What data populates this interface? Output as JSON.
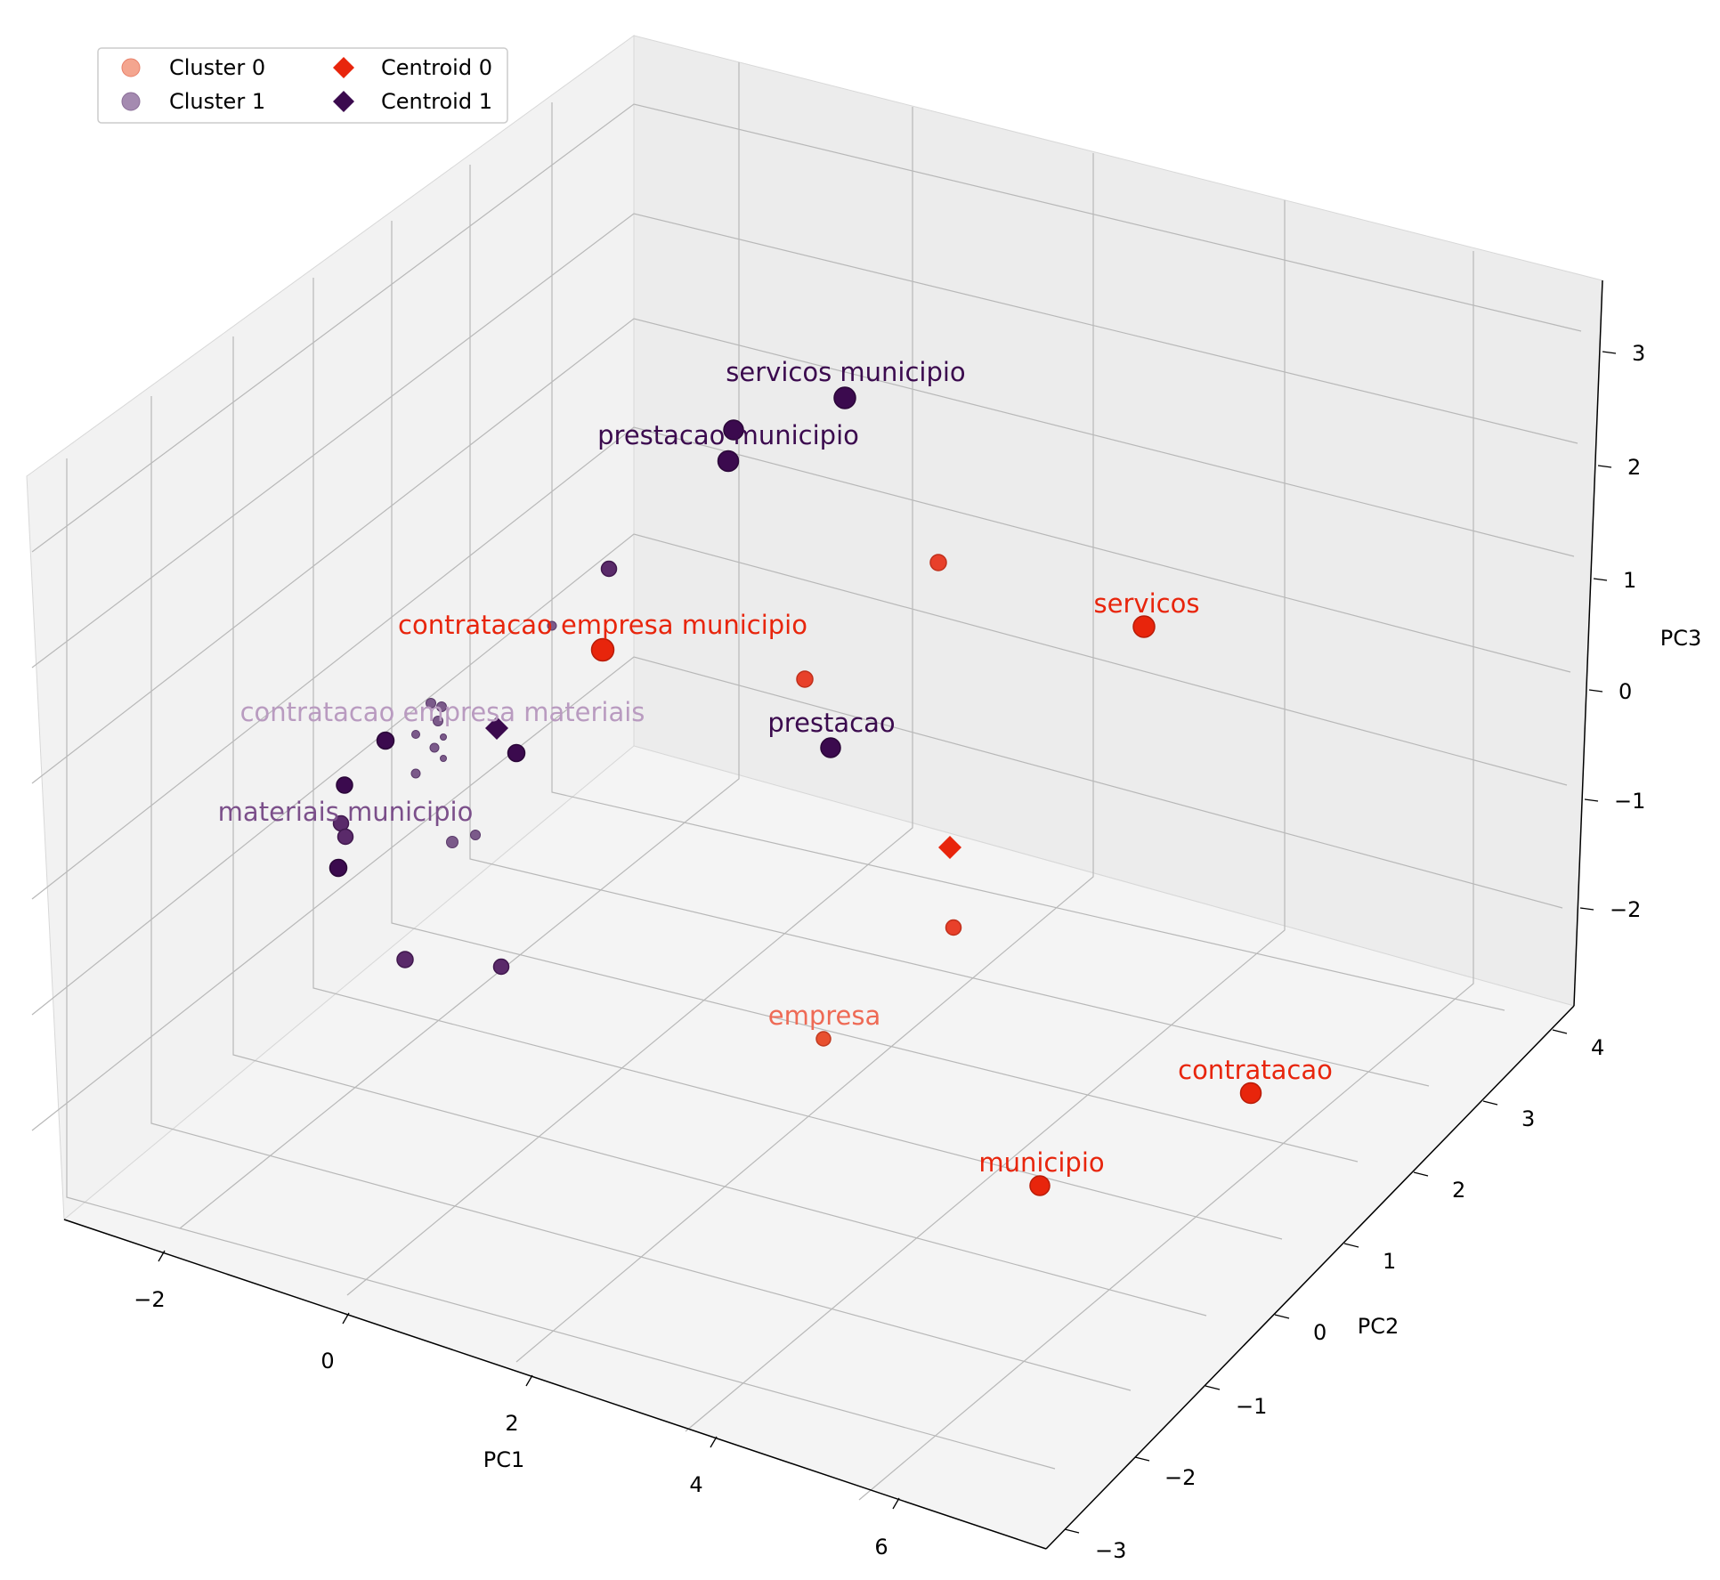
{
  "chart_data": {
    "type": "scatter",
    "projection": "3d",
    "xlabel": "PC1",
    "ylabel": "PC2",
    "zlabel": "PC3",
    "x_ticks": [
      "−2",
      "0",
      "2",
      "4",
      "6"
    ],
    "y_ticks": [
      "−3",
      "−2",
      "−1",
      "0",
      "1",
      "2",
      "3",
      "4"
    ],
    "z_ticks": [
      "−2",
      "−1",
      "0",
      "1",
      "2",
      "3"
    ],
    "legend": {
      "position": "top-left",
      "entries": [
        {
          "label": "Cluster 0",
          "marker": "circle",
          "color": "#f4a58f"
        },
        {
          "label": "Cluster 1",
          "marker": "circle",
          "color": "#a48ab0"
        },
        {
          "label": "Centroid 0",
          "marker": "diamond",
          "color": "#e8250c"
        },
        {
          "label": "Centroid 1",
          "marker": "diamond",
          "color": "#3b0a4e"
        }
      ]
    },
    "series": [
      {
        "name": "Cluster 0",
        "points": [
          {
            "label": "servicos",
            "pc1": 7.0,
            "pc2": 2.4,
            "pc3": 1.6,
            "size": "large",
            "color": "#e8250c",
            "label_color": "#e8250c"
          },
          {
            "label": "contratacao",
            "pc1": 7.4,
            "pc2": 0.4,
            "pc3": -1.6,
            "size": "large",
            "color": "#e8250c",
            "label_color": "#e8250c"
          },
          {
            "label": "municipio",
            "pc1": 6.3,
            "pc2": -0.6,
            "pc3": -1.9,
            "size": "large",
            "color": "#e8250c",
            "label_color": "#e8250c"
          },
          {
            "label": "empresa",
            "pc1": 4.2,
            "pc2": -0.3,
            "pc3": -0.6,
            "size": "medium",
            "color": "#e8502f",
            "label_color": "#ee6a55"
          },
          {
            "label": "contratacao empresa municipio",
            "pc1": 1.6,
            "pc2": 1.5,
            "pc3": 0.3,
            "size": "large",
            "color": "#e8250c",
            "label_color": "#e8250c"
          },
          {
            "label": "",
            "pc1": 4.5,
            "pc2": 3.2,
            "pc3": 1.3,
            "size": "medium",
            "color": "#e8402a"
          },
          {
            "label": "",
            "pc1": 3.9,
            "pc2": 2.2,
            "pc3": 0.3,
            "size": "medium",
            "color": "#e8402a"
          },
          {
            "label": "",
            "pc1": 5.2,
            "pc2": 1.0,
            "pc3": -0.8,
            "size": "medium",
            "color": "#e8402a"
          }
        ]
      },
      {
        "name": "Cluster 1",
        "points": [
          {
            "label": "servicos municipio",
            "pc1": 3.0,
            "pc2": 3.5,
            "pc3": 2.6,
            "size": "large",
            "color": "#3b0a4e",
            "label_color": "#3b0a4e"
          },
          {
            "label": "prestacao municipio",
            "pc1": 1.9,
            "pc2": 3.2,
            "pc3": 2.2,
            "size": "large",
            "color": "#3b0a4e",
            "label_color": "#3b0a4e"
          },
          {
            "label": "",
            "pc1": 2.2,
            "pc2": 3.6,
            "pc3": 2.4,
            "size": "large",
            "color": "#3b0a4e"
          },
          {
            "label": "prestacao",
            "pc1": 3.6,
            "pc2": 1.6,
            "pc3": -0.2,
            "size": "large",
            "color": "#3b0a4e",
            "label_color": "#3b0a4e"
          },
          {
            "label": "contratacao empresa materiais",
            "pc1": -0.2,
            "pc2": 1.0,
            "pc3": 0.0,
            "size": "small",
            "color": "#7b5a8a",
            "label_color": "#b99bc0"
          },
          {
            "label": "materiais municipio",
            "pc1": -0.8,
            "pc2": 0.3,
            "pc3": -0.6,
            "size": "medium",
            "color": "#5a2a6a",
            "label_color": "#7b4f8a"
          },
          {
            "label": "",
            "pc1": 1.2,
            "pc2": 2.6,
            "pc3": 1.0,
            "size": "medium",
            "color": "#5a2a6a"
          },
          {
            "label": "",
            "pc1": 0.9,
            "pc2": 2.1,
            "pc3": 0.3,
            "size": "small",
            "color": "#7b5a8a"
          },
          {
            "label": "",
            "pc1": -0.6,
            "pc2": 0.9,
            "pc3": -0.2,
            "size": "medium",
            "color": "#3b0a4e"
          },
          {
            "label": "",
            "pc1": 0.6,
            "pc2": 1.2,
            "pc3": -0.4,
            "size": "medium",
            "color": "#3b0a4e"
          },
          {
            "label": "",
            "pc1": -0.9,
            "pc2": 0.5,
            "pc3": -0.9,
            "size": "medium",
            "color": "#3b0a4e"
          },
          {
            "label": "",
            "pc1": -0.9,
            "pc2": 0.2,
            "pc3": -1.0,
            "size": "medium",
            "color": "#5a2a6a"
          },
          {
            "label": "",
            "pc1": -1.1,
            "pc2": 0.1,
            "pc3": -1.3,
            "size": "medium",
            "color": "#3b0a4e"
          },
          {
            "label": "",
            "pc1": 0.1,
            "pc2": 0.6,
            "pc3": -0.9,
            "size": "small",
            "color": "#7b5a8a"
          },
          {
            "label": "",
            "pc1": 0.3,
            "pc2": 0.8,
            "pc3": -0.8,
            "size": "small",
            "color": "#7b5a8a"
          },
          {
            "label": "",
            "pc1": -0.6,
            "pc2": -0.3,
            "pc3": -2.0,
            "size": "medium",
            "color": "#5a2a6a"
          },
          {
            "label": "",
            "pc1": 0.4,
            "pc2": 0.0,
            "pc3": -2.0,
            "size": "medium",
            "color": "#5a2a6a"
          },
          {
            "label": "",
            "pc1": -0.1,
            "pc2": 1.1,
            "pc3": 0.2,
            "size": "small",
            "color": "#7b5a8a"
          },
          {
            "label": "",
            "pc1": 0.0,
            "pc2": 1.2,
            "pc3": 0.1,
            "size": "small",
            "color": "#7b5a8a"
          },
          {
            "label": "",
            "pc1": -0.2,
            "pc2": 0.9,
            "pc3": -0.1,
            "size": "small",
            "color": "#7b5a8a"
          },
          {
            "label": "",
            "pc1": -0.3,
            "pc2": 0.7,
            "pc3": -0.3,
            "size": "small",
            "color": "#7b5a8a"
          },
          {
            "label": "",
            "pc1": 0.0,
            "pc2": 0.8,
            "pc3": -0.3,
            "size": "small",
            "color": "#7b5a8a"
          },
          {
            "label": "",
            "pc1": 0.1,
            "pc2": 0.7,
            "pc3": -0.5,
            "size": "small",
            "color": "#7b5a8a"
          },
          {
            "label": "",
            "pc1": -0.3,
            "pc2": 0.5,
            "pc3": -0.5,
            "size": "small",
            "color": "#7b5a8a"
          }
        ]
      }
    ],
    "centroids": [
      {
        "name": "Centroid 0",
        "pc1": 5.0,
        "pc2": 1.3,
        "pc3": -0.3,
        "color": "#e8250c"
      },
      {
        "name": "Centroid 1",
        "pc1": 0.3,
        "pc2": 1.4,
        "pc3": 0.0,
        "color": "#3b0a4e"
      }
    ]
  }
}
